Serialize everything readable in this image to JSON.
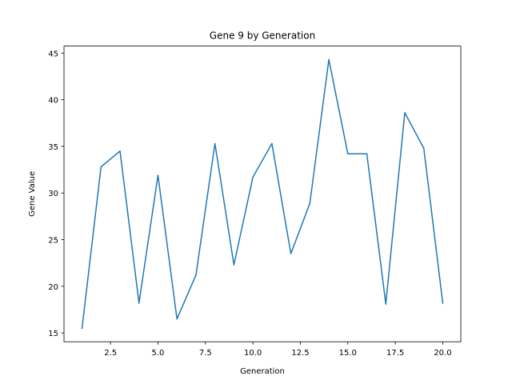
{
  "chart_data": {
    "type": "line",
    "title": "Gene 9 by Generation",
    "xlabel": "Generation",
    "ylabel": "Gene Value",
    "xlim": [
      0.05,
      20.95
    ],
    "ylim": [
      14.05,
      45.75
    ],
    "xticks": [
      2.5,
      5.0,
      7.5,
      10.0,
      12.5,
      15.0,
      17.5,
      20.0
    ],
    "xtick_labels": [
      "2.5",
      "5.0",
      "7.5",
      "10.0",
      "12.5",
      "15.0",
      "17.5",
      "20.0"
    ],
    "yticks": [
      15,
      20,
      25,
      30,
      35,
      40,
      45
    ],
    "ytick_labels": [
      "15",
      "20",
      "25",
      "30",
      "35",
      "40",
      "45"
    ],
    "grid": false,
    "series": [
      {
        "color": "#1f77b4",
        "x": [
          1,
          2,
          3,
          4,
          5,
          6,
          7,
          8,
          9,
          10,
          11,
          12,
          13,
          14,
          15,
          16,
          17,
          18,
          19,
          20
        ],
        "values": [
          15.5,
          32.8,
          34.5,
          18.2,
          31.9,
          16.5,
          21.2,
          35.3,
          22.3,
          31.7,
          35.3,
          23.5,
          28.9,
          44.3,
          34.2,
          34.2,
          18.1,
          38.6,
          34.8,
          18.2
        ]
      }
    ]
  }
}
